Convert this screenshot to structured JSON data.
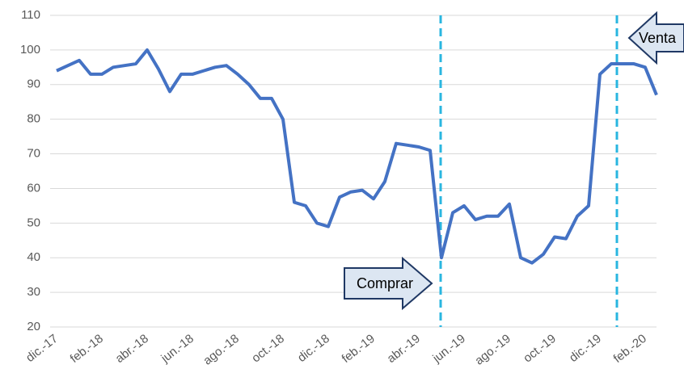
{
  "chart_data": {
    "type": "line",
    "categories": [
      "dic.-17",
      null,
      null,
      null,
      "feb.-18",
      null,
      null,
      null,
      "abr.-18",
      null,
      null,
      null,
      "jun.-18",
      null,
      null,
      null,
      "ago.-18",
      null,
      null,
      null,
      "oct.-18",
      null,
      null,
      null,
      "dic.-18",
      null,
      null,
      null,
      "feb.-19",
      null,
      null,
      null,
      "abr.-19",
      null,
      null,
      null,
      "jun.-19",
      null,
      null,
      null,
      "ago.-19",
      null,
      null,
      null,
      "oct.-19",
      null,
      null,
      null,
      "dic.-19",
      null,
      null,
      null,
      "feb.-20",
      null
    ],
    "series": [
      {
        "color": "#4472c4",
        "values": [
          94,
          95.5,
          97,
          93,
          93,
          95,
          95.5,
          96,
          100,
          94.5,
          88,
          93,
          93,
          94,
          95,
          95.5,
          93,
          90,
          86,
          86,
          80,
          56,
          55,
          50,
          49,
          57.5,
          59,
          59.5,
          57,
          62,
          73,
          72.5,
          72,
          71,
          40,
          53,
          55,
          51,
          52,
          52,
          55.5,
          40,
          38.5,
          41,
          46,
          45.5,
          52,
          55,
          93,
          96,
          96,
          96,
          95,
          87
        ]
      }
    ],
    "ylim": [
      20,
      110
    ],
    "yticks": [
      20,
      30,
      40,
      50,
      60,
      70,
      80,
      90,
      100,
      110
    ],
    "grid": true,
    "annotations": [
      "Comprar",
      "Venta"
    ]
  }
}
